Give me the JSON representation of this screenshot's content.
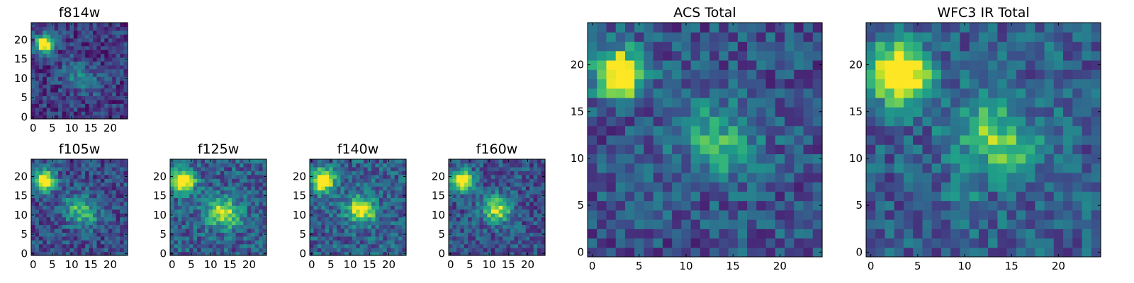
{
  "figure": {
    "background": "#ffffff",
    "colormap": "viridis"
  },
  "chart_data": [
    {
      "type": "heatmap",
      "title": "f814w",
      "grid": false,
      "xlim": [
        -0.5,
        24.5
      ],
      "ylim": [
        -0.5,
        24.5
      ],
      "xticks": [
        0,
        5,
        10,
        15,
        20
      ],
      "yticks": [
        0,
        5,
        10,
        15,
        20
      ],
      "xtick_labels": [
        "0",
        "5",
        "10",
        "15",
        "20"
      ],
      "ytick_labels": [
        "0",
        "5",
        "10",
        "15",
        "20"
      ],
      "sources": [
        {
          "x": 3,
          "y": 19,
          "peak": 1.0,
          "sigma": 1.6
        },
        {
          "x": 11,
          "y": 11,
          "peak": 0.22,
          "sigma": 2.6
        },
        {
          "x": 15,
          "y": 9,
          "peak": 0.16,
          "sigma": 2.2
        }
      ],
      "background_level": 0.18,
      "noise_amplitude": 0.28,
      "seed": 11
    },
    {
      "type": "heatmap",
      "title": "f105w",
      "grid": false,
      "xlim": [
        -0.5,
        24.5
      ],
      "ylim": [
        -0.5,
        24.5
      ],
      "xticks": [
        0,
        5,
        10,
        15,
        20
      ],
      "yticks": [
        0,
        5,
        10,
        15,
        20
      ],
      "xtick_labels": [
        "0",
        "5",
        "10",
        "15",
        "20"
      ],
      "ytick_labels": [
        "0",
        "5",
        "10",
        "15",
        "20"
      ],
      "sources": [
        {
          "x": 3,
          "y": 19,
          "peak": 1.0,
          "sigma": 1.8
        },
        {
          "x": 11,
          "y": 12,
          "peak": 0.32,
          "sigma": 2.6
        },
        {
          "x": 14,
          "y": 10,
          "peak": 0.28,
          "sigma": 2.4
        }
      ],
      "background_level": 0.24,
      "noise_amplitude": 0.3,
      "seed": 23
    },
    {
      "type": "heatmap",
      "title": "f125w",
      "grid": false,
      "xlim": [
        -0.5,
        24.5
      ],
      "ylim": [
        -0.5,
        24.5
      ],
      "xticks": [
        0,
        5,
        10,
        15,
        20
      ],
      "yticks": [
        0,
        5,
        10,
        15,
        20
      ],
      "xtick_labels": [
        "0",
        "5",
        "10",
        "15",
        "20"
      ],
      "ytick_labels": [
        "0",
        "5",
        "10",
        "15",
        "20"
      ],
      "sources": [
        {
          "x": 3,
          "y": 19,
          "peak": 0.95,
          "sigma": 2.0
        },
        {
          "x": 12,
          "y": 11,
          "peak": 0.42,
          "sigma": 2.6
        },
        {
          "x": 15,
          "y": 10,
          "peak": 0.36,
          "sigma": 2.4
        }
      ],
      "background_level": 0.3,
      "noise_amplitude": 0.32,
      "seed": 37
    },
    {
      "type": "heatmap",
      "title": "f140w",
      "grid": false,
      "xlim": [
        -0.5,
        24.5
      ],
      "ylim": [
        -0.5,
        24.5
      ],
      "xticks": [
        0,
        5,
        10,
        15,
        20
      ],
      "yticks": [
        0,
        5,
        10,
        15,
        20
      ],
      "xtick_labels": [
        "0",
        "5",
        "10",
        "15",
        "20"
      ],
      "ytick_labels": [
        "0",
        "5",
        "10",
        "15",
        "20"
      ],
      "sources": [
        {
          "x": 3,
          "y": 19,
          "peak": 0.95,
          "sigma": 2.0
        },
        {
          "x": 12,
          "y": 12,
          "peak": 0.42,
          "sigma": 2.4
        },
        {
          "x": 14,
          "y": 11,
          "peak": 0.4,
          "sigma": 2.2
        }
      ],
      "background_level": 0.3,
      "noise_amplitude": 0.32,
      "seed": 41
    },
    {
      "type": "heatmap",
      "title": "f160w",
      "grid": false,
      "xlim": [
        -0.5,
        24.5
      ],
      "ylim": [
        -0.5,
        24.5
      ],
      "xticks": [
        0,
        5,
        10,
        15,
        20
      ],
      "yticks": [
        0,
        5,
        10,
        15,
        20
      ],
      "xtick_labels": [
        "0",
        "5",
        "10",
        "15",
        "20"
      ],
      "ytick_labels": [
        "0",
        "5",
        "10",
        "15",
        "20"
      ],
      "sources": [
        {
          "x": 3,
          "y": 19,
          "peak": 1.0,
          "sigma": 1.8
        },
        {
          "x": 11,
          "y": 12,
          "peak": 0.38,
          "sigma": 2.4
        },
        {
          "x": 13,
          "y": 11,
          "peak": 0.35,
          "sigma": 2.2
        }
      ],
      "background_level": 0.26,
      "noise_amplitude": 0.3,
      "seed": 53
    },
    {
      "type": "heatmap",
      "title": "ACS Total",
      "grid": false,
      "xlim": [
        -0.5,
        24.5
      ],
      "ylim": [
        -0.5,
        24.5
      ],
      "xticks": [
        0,
        5,
        10,
        15,
        20
      ],
      "yticks": [
        0,
        5,
        10,
        15,
        20
      ],
      "xtick_labels": [
        "0",
        "5",
        "10",
        "15",
        "20"
      ],
      "ytick_labels": [
        "0",
        "5",
        "10",
        "15",
        "20"
      ],
      "sources": [
        {
          "x": 3,
          "y": 19,
          "peak": 1.0,
          "sigma": 1.8
        },
        {
          "x": 12,
          "y": 13,
          "peak": 0.26,
          "sigma": 2.6
        },
        {
          "x": 15,
          "y": 11,
          "peak": 0.24,
          "sigma": 2.4
        }
      ],
      "background_level": 0.26,
      "noise_amplitude": 0.3,
      "seed": 67
    },
    {
      "type": "heatmap",
      "title": "WFC3 IR Total",
      "grid": false,
      "xlim": [
        -0.5,
        24.5
      ],
      "ylim": [
        -0.5,
        24.5
      ],
      "xticks": [
        0,
        5,
        10,
        15,
        20
      ],
      "yticks": [
        0,
        5,
        10,
        15,
        20
      ],
      "xtick_labels": [
        "0",
        "5",
        "10",
        "15",
        "20"
      ],
      "ytick_labels": [
        "0",
        "5",
        "10",
        "15",
        "20"
      ],
      "sources": [
        {
          "x": 3,
          "y": 19,
          "peak": 1.0,
          "sigma": 2.1
        },
        {
          "x": 12,
          "y": 13,
          "peak": 0.32,
          "sigma": 2.6
        },
        {
          "x": 15,
          "y": 11,
          "peak": 0.3,
          "sigma": 2.4
        },
        {
          "x": 10,
          "y": 7,
          "peak": 0.2,
          "sigma": 1.2
        }
      ],
      "background_level": 0.3,
      "noise_amplitude": 0.3,
      "seed": 79
    }
  ]
}
